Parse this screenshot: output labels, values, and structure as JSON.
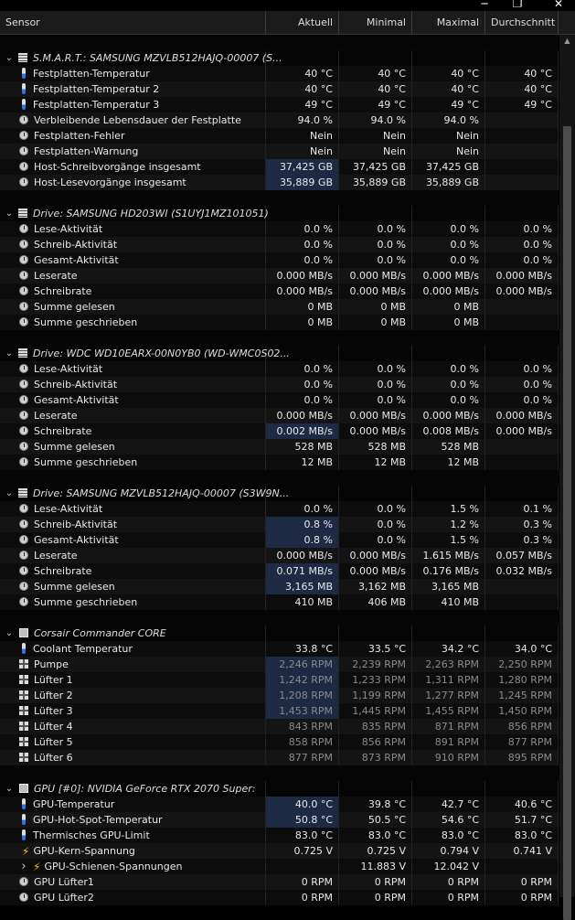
{
  "window": {
    "minimize": "─",
    "maximize": "❐",
    "close": "✕"
  },
  "columns": {
    "sensor": "Sensor",
    "current": "Aktuell",
    "min": "Minimal",
    "max": "Maximal",
    "avg": "Durchschnitt"
  },
  "rows": [
    {
      "type": "spacer"
    },
    {
      "type": "group",
      "icon": "hdd-icon",
      "name": "S.M.A.R.T.: SAMSUNG MZVLB512HAJQ-00007 (S...",
      "expanded": true
    },
    {
      "icon": "thermometer-icon",
      "name": "Festplatten-Temperatur",
      "cur": "40 °C",
      "min": "40 °C",
      "max": "40 °C",
      "avg": "40 °C"
    },
    {
      "icon": "thermometer-icon",
      "name": "Festplatten-Temperatur 2",
      "cur": "40 °C",
      "min": "40 °C",
      "max": "40 °C",
      "avg": "40 °C"
    },
    {
      "icon": "thermometer-icon",
      "name": "Festplatten-Temperatur 3",
      "cur": "49 °C",
      "min": "49 °C",
      "max": "49 °C",
      "avg": "49 °C"
    },
    {
      "icon": "gauge-icon",
      "name": "Verbleibende Lebensdauer der Festplatte",
      "cur": "94.0 %",
      "min": "94.0 %",
      "max": "94.0 %",
      "avg": ""
    },
    {
      "icon": "gauge-icon",
      "name": "Festplatten-Fehler",
      "cur": "Nein",
      "min": "Nein",
      "max": "Nein",
      "avg": ""
    },
    {
      "icon": "gauge-icon",
      "name": "Festplatten-Warnung",
      "cur": "Nein",
      "min": "Nein",
      "max": "Nein",
      "avg": ""
    },
    {
      "icon": "gauge-icon",
      "name": "Host-Schreibvorgänge insgesamt",
      "cur": "37,425 GB",
      "min": "37,425 GB",
      "max": "37,425 GB",
      "avg": "",
      "hl": true
    },
    {
      "icon": "gauge-icon",
      "name": "Host-Lesevorgänge insgesamt",
      "cur": "35,889 GB",
      "min": "35,889 GB",
      "max": "35,889 GB",
      "avg": "",
      "hl": true
    },
    {
      "type": "spacer"
    },
    {
      "type": "group",
      "icon": "hdd-icon",
      "name": "Drive: SAMSUNG HD203WI (S1UYJ1MZ101051)",
      "expanded": true
    },
    {
      "icon": "gauge-icon",
      "name": "Lese-Aktivität",
      "cur": "0.0 %",
      "min": "0.0 %",
      "max": "0.0 %",
      "avg": "0.0 %"
    },
    {
      "icon": "gauge-icon",
      "name": "Schreib-Aktivität",
      "cur": "0.0 %",
      "min": "0.0 %",
      "max": "0.0 %",
      "avg": "0.0 %"
    },
    {
      "icon": "gauge-icon",
      "name": "Gesamt-Aktivität",
      "cur": "0.0 %",
      "min": "0.0 %",
      "max": "0.0 %",
      "avg": "0.0 %"
    },
    {
      "icon": "gauge-icon",
      "name": "Leserate",
      "cur": "0.000 MB/s",
      "min": "0.000 MB/s",
      "max": "0.000 MB/s",
      "avg": "0.000 MB/s"
    },
    {
      "icon": "gauge-icon",
      "name": "Schreibrate",
      "cur": "0.000 MB/s",
      "min": "0.000 MB/s",
      "max": "0.000 MB/s",
      "avg": "0.000 MB/s"
    },
    {
      "icon": "gauge-icon",
      "name": "Summe gelesen",
      "cur": "0 MB",
      "min": "0 MB",
      "max": "0 MB",
      "avg": ""
    },
    {
      "icon": "gauge-icon",
      "name": "Summe geschrieben",
      "cur": "0 MB",
      "min": "0 MB",
      "max": "0 MB",
      "avg": ""
    },
    {
      "type": "spacer"
    },
    {
      "type": "group",
      "icon": "hdd-icon",
      "name": "Drive: WDC WD10EARX-00N0YB0 (WD-WMC0S02...",
      "expanded": true
    },
    {
      "icon": "gauge-icon",
      "name": "Lese-Aktivität",
      "cur": "0.0 %",
      "min": "0.0 %",
      "max": "0.0 %",
      "avg": "0.0 %"
    },
    {
      "icon": "gauge-icon",
      "name": "Schreib-Aktivität",
      "cur": "0.0 %",
      "min": "0.0 %",
      "max": "0.0 %",
      "avg": "0.0 %"
    },
    {
      "icon": "gauge-icon",
      "name": "Gesamt-Aktivität",
      "cur": "0.0 %",
      "min": "0.0 %",
      "max": "0.0 %",
      "avg": "0.0 %"
    },
    {
      "icon": "gauge-icon",
      "name": "Leserate",
      "cur": "0.000 MB/s",
      "min": "0.000 MB/s",
      "max": "0.000 MB/s",
      "avg": "0.000 MB/s"
    },
    {
      "icon": "gauge-icon",
      "name": "Schreibrate",
      "cur": "0.002 MB/s",
      "min": "0.000 MB/s",
      "max": "0.008 MB/s",
      "avg": "0.000 MB/s",
      "hl": true
    },
    {
      "icon": "gauge-icon",
      "name": "Summe gelesen",
      "cur": "528 MB",
      "min": "528 MB",
      "max": "528 MB",
      "avg": ""
    },
    {
      "icon": "gauge-icon",
      "name": "Summe geschrieben",
      "cur": "12 MB",
      "min": "12 MB",
      "max": "12 MB",
      "avg": ""
    },
    {
      "type": "spacer"
    },
    {
      "type": "group",
      "icon": "hdd-icon",
      "name": "Drive: SAMSUNG MZVLB512HAJQ-00007 (S3W9N...",
      "expanded": true
    },
    {
      "icon": "gauge-icon",
      "name": "Lese-Aktivität",
      "cur": "0.0 %",
      "min": "0.0 %",
      "max": "1.5 %",
      "avg": "0.1 %"
    },
    {
      "icon": "gauge-icon",
      "name": "Schreib-Aktivität",
      "cur": "0.8 %",
      "min": "0.0 %",
      "max": "1.2 %",
      "avg": "0.3 %",
      "hl": true
    },
    {
      "icon": "gauge-icon",
      "name": "Gesamt-Aktivität",
      "cur": "0.8 %",
      "min": "0.0 %",
      "max": "1.5 %",
      "avg": "0.3 %",
      "hl": true
    },
    {
      "icon": "gauge-icon",
      "name": "Leserate",
      "cur": "0.000 MB/s",
      "min": "0.000 MB/s",
      "max": "1.615 MB/s",
      "avg": "0.057 MB/s"
    },
    {
      "icon": "gauge-icon",
      "name": "Schreibrate",
      "cur": "0.071 MB/s",
      "min": "0.000 MB/s",
      "max": "0.176 MB/s",
      "avg": "0.032 MB/s",
      "hl": true
    },
    {
      "icon": "gauge-icon",
      "name": "Summe gelesen",
      "cur": "3,165 MB",
      "min": "3,162 MB",
      "max": "3,165 MB",
      "avg": "",
      "hl": true
    },
    {
      "icon": "gauge-icon",
      "name": "Summe geschrieben",
      "cur": "410 MB",
      "min": "406 MB",
      "max": "410 MB",
      "avg": ""
    },
    {
      "type": "spacer"
    },
    {
      "type": "group",
      "icon": "gear-icon",
      "name": "Corsair Commander CORE",
      "expanded": true
    },
    {
      "icon": "thermometer-icon",
      "name": "Coolant Temperatur",
      "cur": "33.8 °C",
      "min": "33.5 °C",
      "max": "34.2 °C",
      "avg": "34.0 °C"
    },
    {
      "icon": "fan-icon",
      "name": "Pumpe",
      "cur": "2,246 RPM",
      "min": "2,239 RPM",
      "max": "2,263 RPM",
      "avg": "2,250 RPM",
      "hl": true,
      "dim": true
    },
    {
      "icon": "fan-icon",
      "name": "Lüfter 1",
      "cur": "1,242 RPM",
      "min": "1,233 RPM",
      "max": "1,311 RPM",
      "avg": "1,280 RPM",
      "hl": true,
      "dim": true
    },
    {
      "icon": "fan-icon",
      "name": "Lüfter 2",
      "cur": "1,208 RPM",
      "min": "1,199 RPM",
      "max": "1,277 RPM",
      "avg": "1,245 RPM",
      "hl": true,
      "dim": true
    },
    {
      "icon": "fan-icon",
      "name": "Lüfter 3",
      "cur": "1,453 RPM",
      "min": "1,445 RPM",
      "max": "1,455 RPM",
      "avg": "1,450 RPM",
      "hl": true,
      "dim": true
    },
    {
      "icon": "fan-icon",
      "name": "Lüfter 4",
      "cur": "843 RPM",
      "min": "835 RPM",
      "max": "871 RPM",
      "avg": "856 RPM",
      "dim": true
    },
    {
      "icon": "fan-icon",
      "name": "Lüfter 5",
      "cur": "858 RPM",
      "min": "856 RPM",
      "max": "891 RPM",
      "avg": "877 RPM",
      "dim": true
    },
    {
      "icon": "fan-icon",
      "name": "Lüfter 6",
      "cur": "877 RPM",
      "min": "873 RPM",
      "max": "910 RPM",
      "avg": "895 RPM",
      "dim": true
    },
    {
      "type": "spacer"
    },
    {
      "type": "group",
      "icon": "chip-icon",
      "name": "GPU [#0]: NVIDIA GeForce RTX 2070 Super:",
      "expanded": true
    },
    {
      "icon": "thermometer-icon",
      "name": "GPU-Temperatur",
      "cur": "40.0 °C",
      "min": "39.8 °C",
      "max": "42.7 °C",
      "avg": "40.6 °C",
      "hl": true
    },
    {
      "icon": "thermometer-icon",
      "name": "GPU-Hot-Spot-Temperatur",
      "cur": "50.8 °C",
      "min": "50.5 °C",
      "max": "54.6 °C",
      "avg": "51.7 °C",
      "hl": true
    },
    {
      "icon": "thermometer-icon",
      "name": "Thermisches GPU-Limit",
      "cur": "83.0 °C",
      "min": "83.0 °C",
      "max": "83.0 °C",
      "avg": "83.0 °C"
    },
    {
      "icon": "bolt-icon",
      "name": "GPU-Kern-Spannung",
      "cur": "0.725 V",
      "min": "0.725 V",
      "max": "0.794 V",
      "avg": "0.741 V"
    },
    {
      "icon": "bolt-icon",
      "name": "GPU-Schienen-Spannungen",
      "cur": "",
      "min": "11.883 V",
      "max": "12.042 V",
      "avg": "",
      "sub": true
    },
    {
      "icon": "gauge-icon",
      "name": "GPU Lüfter1",
      "cur": "0 RPM",
      "min": "0 RPM",
      "max": "0 RPM",
      "avg": "0 RPM"
    },
    {
      "icon": "gauge-icon",
      "name": "GPU Lüfter2",
      "cur": "0 RPM",
      "min": "0 RPM",
      "max": "0 RPM",
      "avg": "0 RPM"
    }
  ]
}
